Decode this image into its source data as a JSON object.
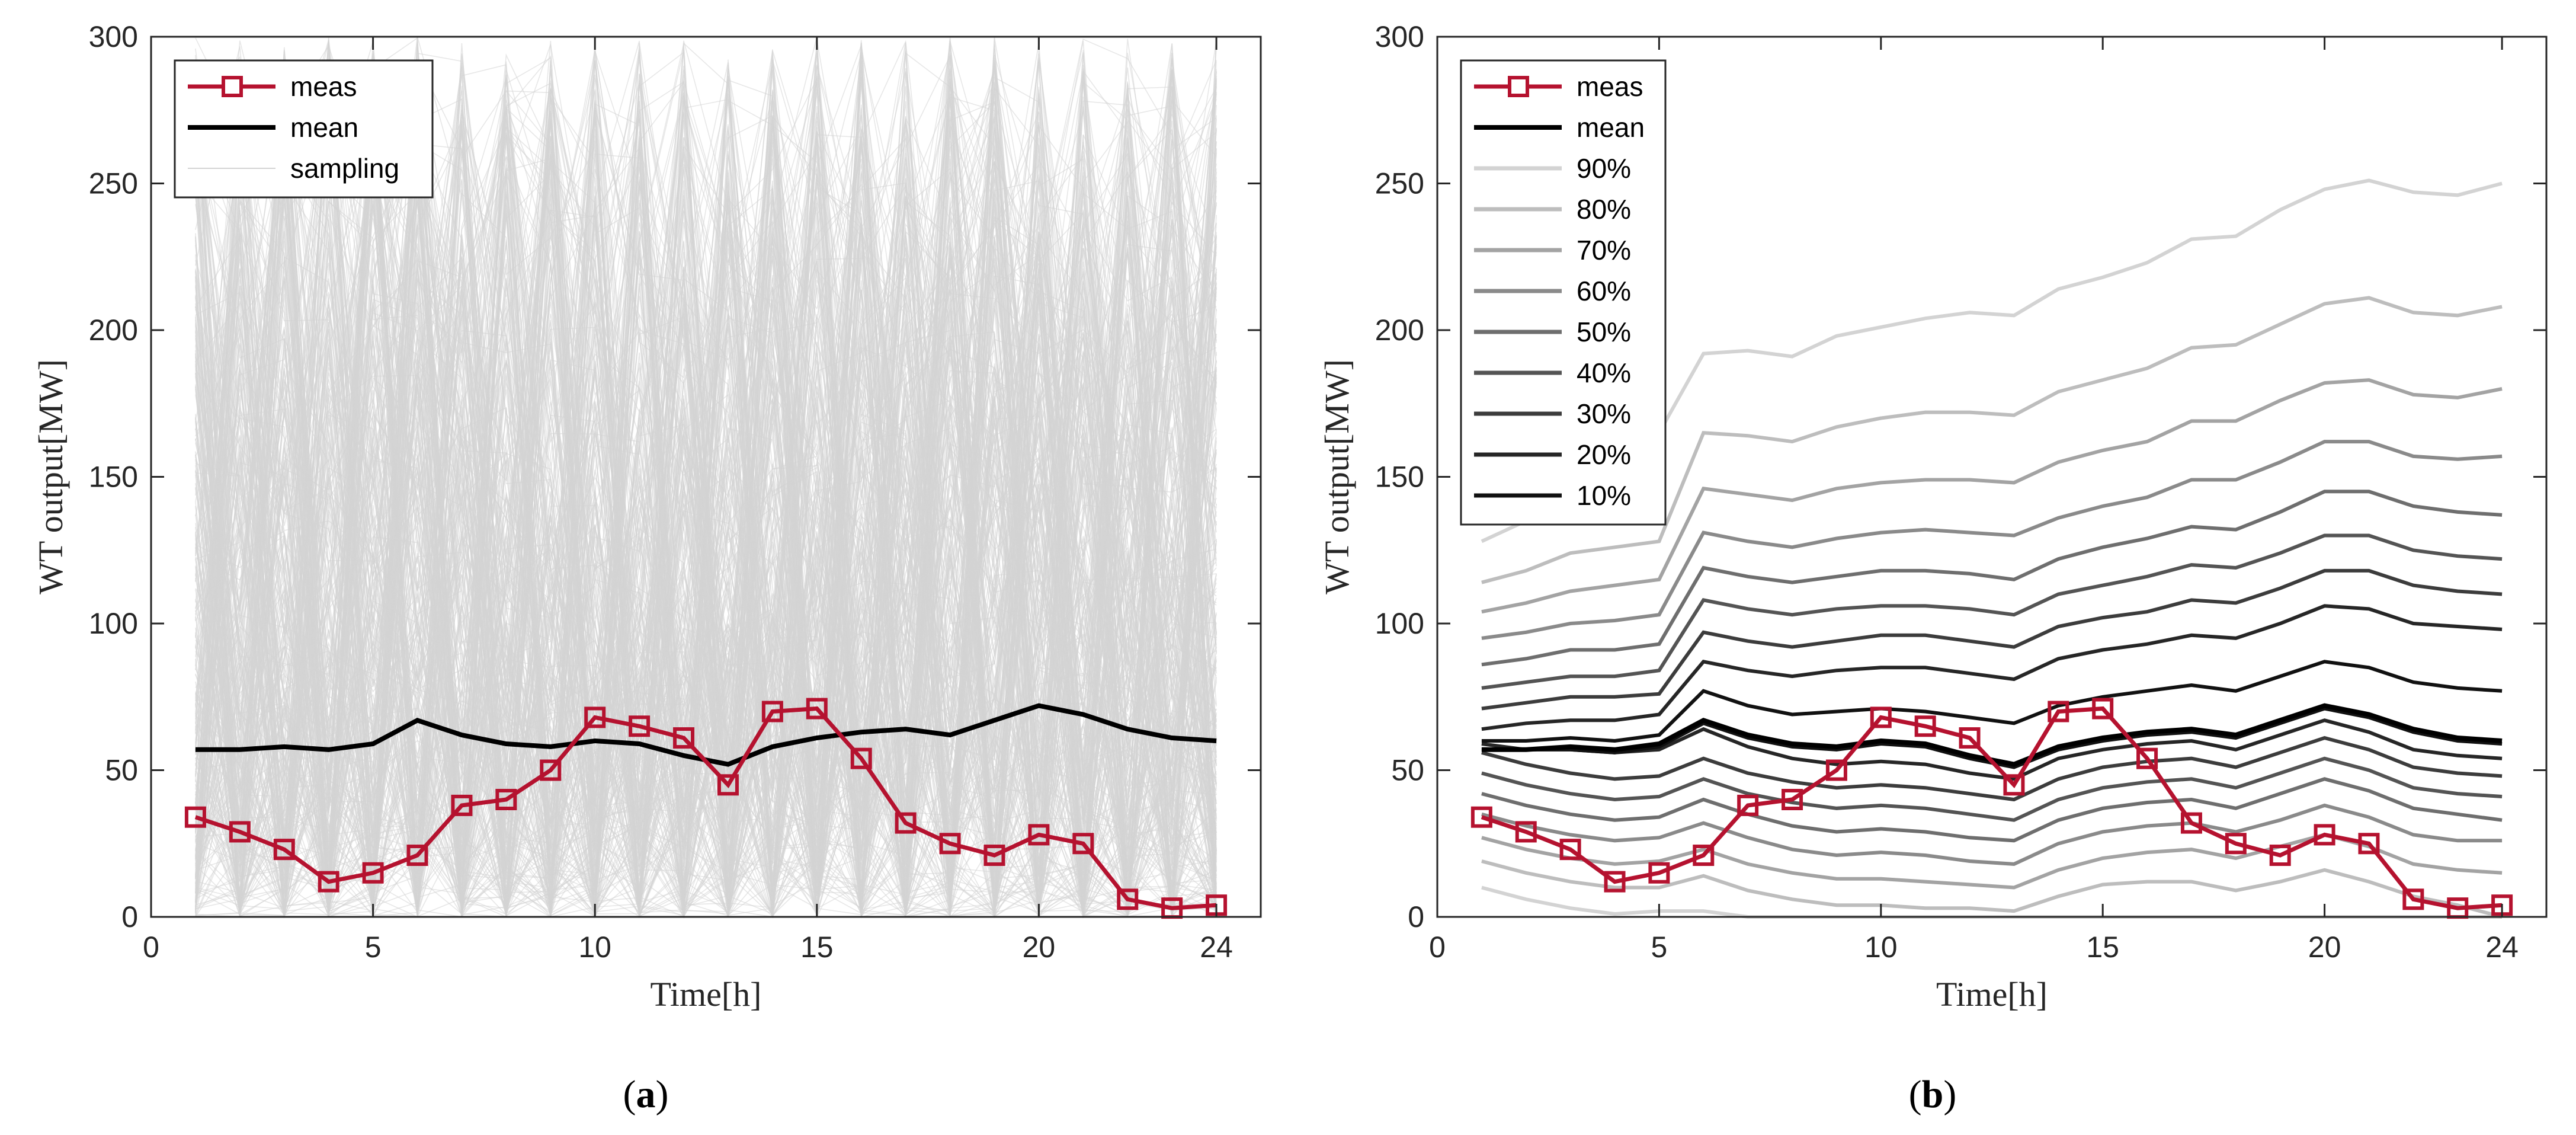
{
  "chart_data": [
    {
      "panel": "a",
      "type": "line",
      "caption": "(a)",
      "caption_letter": "a",
      "xlabel": "Time[h]",
      "ylabel": "WT output[MW]",
      "xlim": [
        0,
        25
      ],
      "ylim": [
        0,
        300
      ],
      "xticks": [
        0,
        5,
        10,
        15,
        20,
        24
      ],
      "yticks": [
        0,
        50,
        100,
        150,
        200,
        250,
        300
      ],
      "legend_position": "top-left",
      "x": [
        1,
        2,
        3,
        4,
        5,
        6,
        7,
        8,
        9,
        10,
        11,
        12,
        13,
        14,
        15,
        16,
        17,
        18,
        19,
        20,
        21,
        22,
        23,
        24
      ],
      "series": [
        {
          "name": "meas",
          "color": "#b5122f",
          "marker": "square",
          "values": [
            34,
            29,
            23,
            12,
            15,
            21,
            38,
            40,
            50,
            68,
            65,
            61,
            45,
            70,
            71,
            54,
            32,
            25,
            21,
            28,
            25,
            6,
            3,
            4
          ]
        },
        {
          "name": "mean",
          "color": "#000000",
          "values": [
            57,
            57,
            58,
            57,
            59,
            67,
            62,
            59,
            58,
            60,
            59,
            55,
            52,
            58,
            61,
            63,
            64,
            62,
            67,
            72,
            69,
            64,
            61,
            60
          ]
        },
        {
          "name": "sampling",
          "color": "#d4d4d4",
          "note": "random scenario samples"
        }
      ]
    },
    {
      "panel": "b",
      "type": "line",
      "caption": "(b)",
      "caption_letter": "b",
      "xlabel": "Time[h]",
      "ylabel": "WT output[MW]",
      "xlim": [
        0,
        25
      ],
      "ylim": [
        0,
        300
      ],
      "xticks": [
        0,
        5,
        10,
        15,
        20,
        24
      ],
      "yticks": [
        0,
        50,
        100,
        150,
        200,
        250,
        300
      ],
      "legend_position": "top-left",
      "x": [
        1,
        2,
        3,
        4,
        5,
        6,
        7,
        8,
        9,
        10,
        11,
        12,
        13,
        14,
        15,
        16,
        17,
        18,
        19,
        20,
        21,
        22,
        23,
        24
      ],
      "series": [
        {
          "name": "meas",
          "color": "#b5122f",
          "marker": "square",
          "values": [
            34,
            29,
            23,
            12,
            15,
            21,
            38,
            40,
            50,
            68,
            65,
            61,
            45,
            70,
            71,
            54,
            32,
            25,
            21,
            28,
            25,
            6,
            3,
            4
          ]
        },
        {
          "name": "mean",
          "color": "#000000",
          "values": [
            57,
            57,
            58,
            57,
            59,
            67,
            62,
            59,
            58,
            60,
            59,
            55,
            52,
            58,
            61,
            63,
            64,
            62,
            67,
            72,
            69,
            64,
            61,
            60
          ]
        }
      ],
      "bands": [
        {
          "name": "90%",
          "color": "#d3d3d3",
          "upper": [
            128,
            135,
            155,
            160,
            165,
            192,
            193,
            191,
            198,
            201,
            204,
            206,
            205,
            214,
            218,
            223,
            231,
            232,
            241,
            248,
            251,
            247,
            246,
            250
          ],
          "lower": [
            10,
            6,
            3,
            1,
            2,
            2,
            0,
            0,
            0,
            0,
            0,
            0,
            0,
            0,
            0,
            0,
            0,
            0,
            0,
            0,
            0,
            0,
            0,
            0
          ]
        },
        {
          "name": "80%",
          "color": "#bdbdbd",
          "upper": [
            114,
            118,
            124,
            126,
            128,
            165,
            164,
            162,
            167,
            170,
            172,
            172,
            171,
            179,
            183,
            187,
            194,
            195,
            202,
            209,
            211,
            206,
            205,
            208
          ],
          "lower": [
            19,
            15,
            12,
            10,
            10,
            14,
            9,
            6,
            4,
            4,
            3,
            3,
            2,
            7,
            11,
            12,
            12,
            9,
            12,
            16,
            12,
            7,
            4,
            0
          ]
        },
        {
          "name": "70%",
          "color": "#a3a3a3",
          "upper": [
            104,
            107,
            111,
            113,
            115,
            146,
            144,
            142,
            146,
            148,
            149,
            149,
            148,
            155,
            159,
            162,
            169,
            169,
            176,
            182,
            183,
            178,
            177,
            180
          ],
          "lower": [
            27,
            23,
            20,
            18,
            19,
            23,
            18,
            15,
            13,
            13,
            12,
            11,
            10,
            16,
            20,
            22,
            23,
            20,
            24,
            28,
            24,
            18,
            16,
            15
          ]
        },
        {
          "name": "60%",
          "color": "#8a8a8a",
          "upper": [
            95,
            97,
            100,
            101,
            103,
            131,
            128,
            126,
            129,
            131,
            132,
            131,
            130,
            136,
            140,
            143,
            149,
            149,
            155,
            162,
            162,
            157,
            156,
            157
          ],
          "lower": [
            35,
            31,
            28,
            26,
            27,
            32,
            27,
            23,
            21,
            22,
            21,
            19,
            18,
            25,
            29,
            31,
            32,
            29,
            33,
            38,
            34,
            28,
            26,
            26
          ]
        },
        {
          "name": "50%",
          "color": "#6e6e6e",
          "upper": [
            86,
            88,
            91,
            91,
            93,
            119,
            116,
            114,
            116,
            118,
            118,
            117,
            115,
            122,
            126,
            129,
            133,
            132,
            138,
            145,
            145,
            140,
            138,
            137
          ],
          "lower": [
            42,
            38,
            35,
            33,
            34,
            40,
            35,
            31,
            29,
            30,
            29,
            27,
            26,
            33,
            37,
            39,
            40,
            37,
            42,
            47,
            43,
            37,
            35,
            33
          ]
        },
        {
          "name": "40%",
          "color": "#545454",
          "upper": [
            78,
            80,
            82,
            82,
            84,
            108,
            105,
            103,
            105,
            106,
            106,
            105,
            103,
            110,
            113,
            116,
            120,
            119,
            124,
            130,
            130,
            125,
            123,
            122
          ],
          "lower": [
            49,
            45,
            42,
            40,
            41,
            47,
            42,
            39,
            37,
            38,
            37,
            35,
            33,
            40,
            44,
            46,
            47,
            44,
            49,
            54,
            50,
            44,
            42,
            41
          ]
        },
        {
          "name": "30%",
          "color": "#3c3c3c",
          "upper": [
            71,
            73,
            75,
            75,
            76,
            97,
            94,
            92,
            94,
            96,
            96,
            94,
            92,
            99,
            102,
            104,
            108,
            107,
            112,
            118,
            118,
            113,
            111,
            110
          ],
          "lower": [
            56,
            52,
            49,
            47,
            48,
            54,
            49,
            46,
            44,
            45,
            44,
            42,
            40,
            47,
            51,
            53,
            54,
            51,
            56,
            61,
            57,
            51,
            49,
            48
          ]
        },
        {
          "name": "20%",
          "color": "#262626",
          "upper": [
            64,
            66,
            67,
            67,
            69,
            87,
            84,
            82,
            84,
            85,
            85,
            83,
            81,
            88,
            91,
            93,
            96,
            95,
            100,
            106,
            105,
            100,
            99,
            98
          ],
          "lower": [
            59,
            57,
            57,
            56,
            57,
            64,
            58,
            54,
            52,
            53,
            52,
            49,
            47,
            54,
            57,
            59,
            60,
            57,
            62,
            67,
            63,
            57,
            55,
            54
          ]
        },
        {
          "name": "10%",
          "color": "#111111",
          "upper": [
            60,
            60,
            61,
            60,
            62,
            77,
            72,
            69,
            70,
            71,
            70,
            68,
            66,
            72,
            75,
            77,
            79,
            77,
            82,
            87,
            85,
            80,
            78,
            77
          ],
          "lower": [
            57,
            57,
            57,
            56,
            58,
            66,
            61,
            58,
            57,
            59,
            58,
            54,
            51,
            57,
            60,
            62,
            63,
            61,
            66,
            71,
            68,
            63,
            60,
            59
          ]
        }
      ]
    }
  ]
}
